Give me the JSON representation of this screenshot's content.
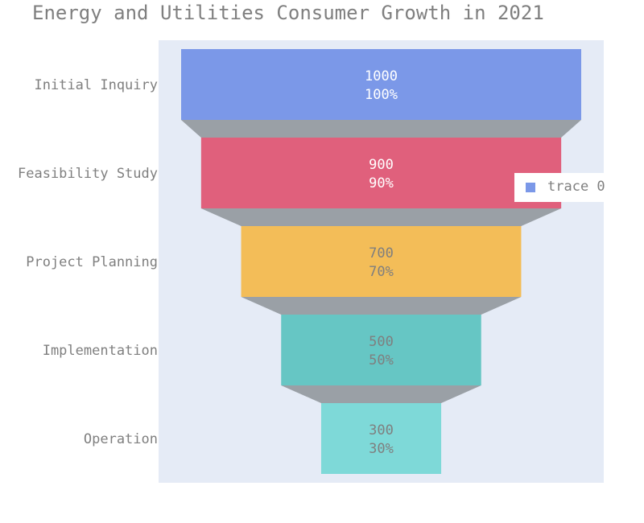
{
  "chart_data": {
    "type": "funnel",
    "title": "Energy and Utilities Consumer Growth in 2021",
    "categories": [
      "Initial Inquiry",
      "Feasibility Study",
      "Project Planning",
      "Implementation",
      "Operation"
    ],
    "values": [
      1000,
      900,
      700,
      500,
      300
    ],
    "percent_labels": [
      "100%",
      "90%",
      "70%",
      "50%",
      "30%"
    ],
    "colors": [
      "#7b98e8",
      "#e0607c",
      "#f3bd58",
      "#66c6c4",
      "#7ed9d8"
    ],
    "text_colors": [
      "#ffffff",
      "#ffffff",
      "#7f7f7f",
      "#7f7f7f",
      "#7f7f7f"
    ],
    "connector_color": "#9aa0a6",
    "plot_background": "#e5ebf6",
    "legend": {
      "entries": [
        {
          "name": "trace 0",
          "color": "#7b98e8"
        }
      ],
      "placement": "right"
    }
  }
}
